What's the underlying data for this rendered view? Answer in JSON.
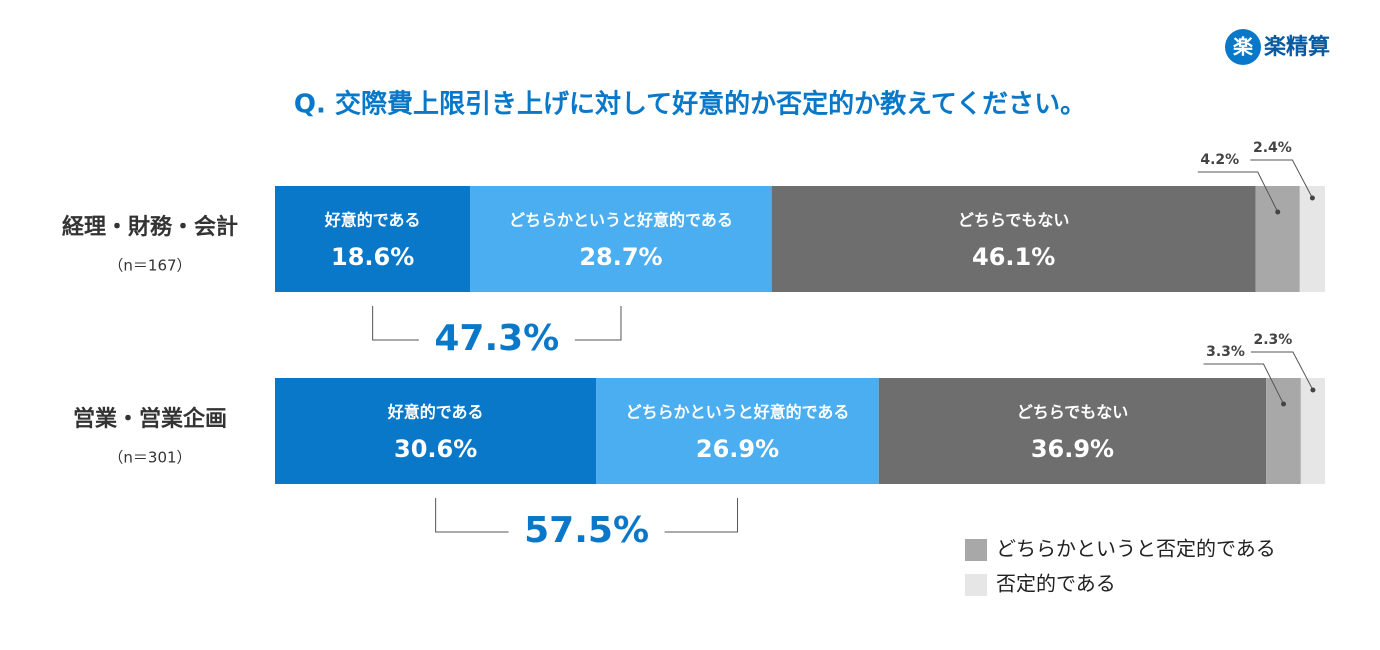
{
  "chart_data": {
    "type": "stacked-bar",
    "logo_icon": "楽",
    "logo_text": "楽精算",
    "title": "Q. 交際費上限引き上げに対して好意的か否定的か教えてください。",
    "categories": [
      "経理・財務・会計",
      "営業・営業企画"
    ],
    "category_notes": [
      "（n＝167）",
      "（n＝301）"
    ],
    "xlim": [
      0,
      100
    ],
    "series": [
      {
        "name": "好意的である",
        "color": "#0a78c8",
        "label": "inside",
        "values": [
          18.6,
          30.6
        ],
        "value_labels": [
          "18.6%",
          "30.6%"
        ]
      },
      {
        "name": "どちらかというと好意的である",
        "color": "#4aaef0",
        "label": "inside",
        "values": [
          28.7,
          26.9
        ],
        "value_labels": [
          "28.7%",
          "26.9%"
        ]
      },
      {
        "name": "どちらでもない",
        "color": "#6e6e6e",
        "label": "inside",
        "values": [
          46.1,
          36.9
        ],
        "value_labels": [
          "46.1%",
          "36.9%"
        ]
      },
      {
        "name": "どちらかというと否定的である",
        "color": "#a8a8a8",
        "label": "legend",
        "values": [
          4.2,
          3.3
        ],
        "value_labels": [
          "4.2%",
          "3.3%"
        ]
      },
      {
        "name": "否定的である",
        "color": "#e6e6e6",
        "label": "legend",
        "values": [
          2.4,
          2.3
        ],
        "value_labels": [
          "2.4%",
          "2.3%"
        ]
      }
    ],
    "combined": {
      "values": [
        47.3,
        57.5
      ],
      "value_labels": [
        "47.3%",
        "57.5%"
      ],
      "color": "#0a78c8"
    }
  }
}
